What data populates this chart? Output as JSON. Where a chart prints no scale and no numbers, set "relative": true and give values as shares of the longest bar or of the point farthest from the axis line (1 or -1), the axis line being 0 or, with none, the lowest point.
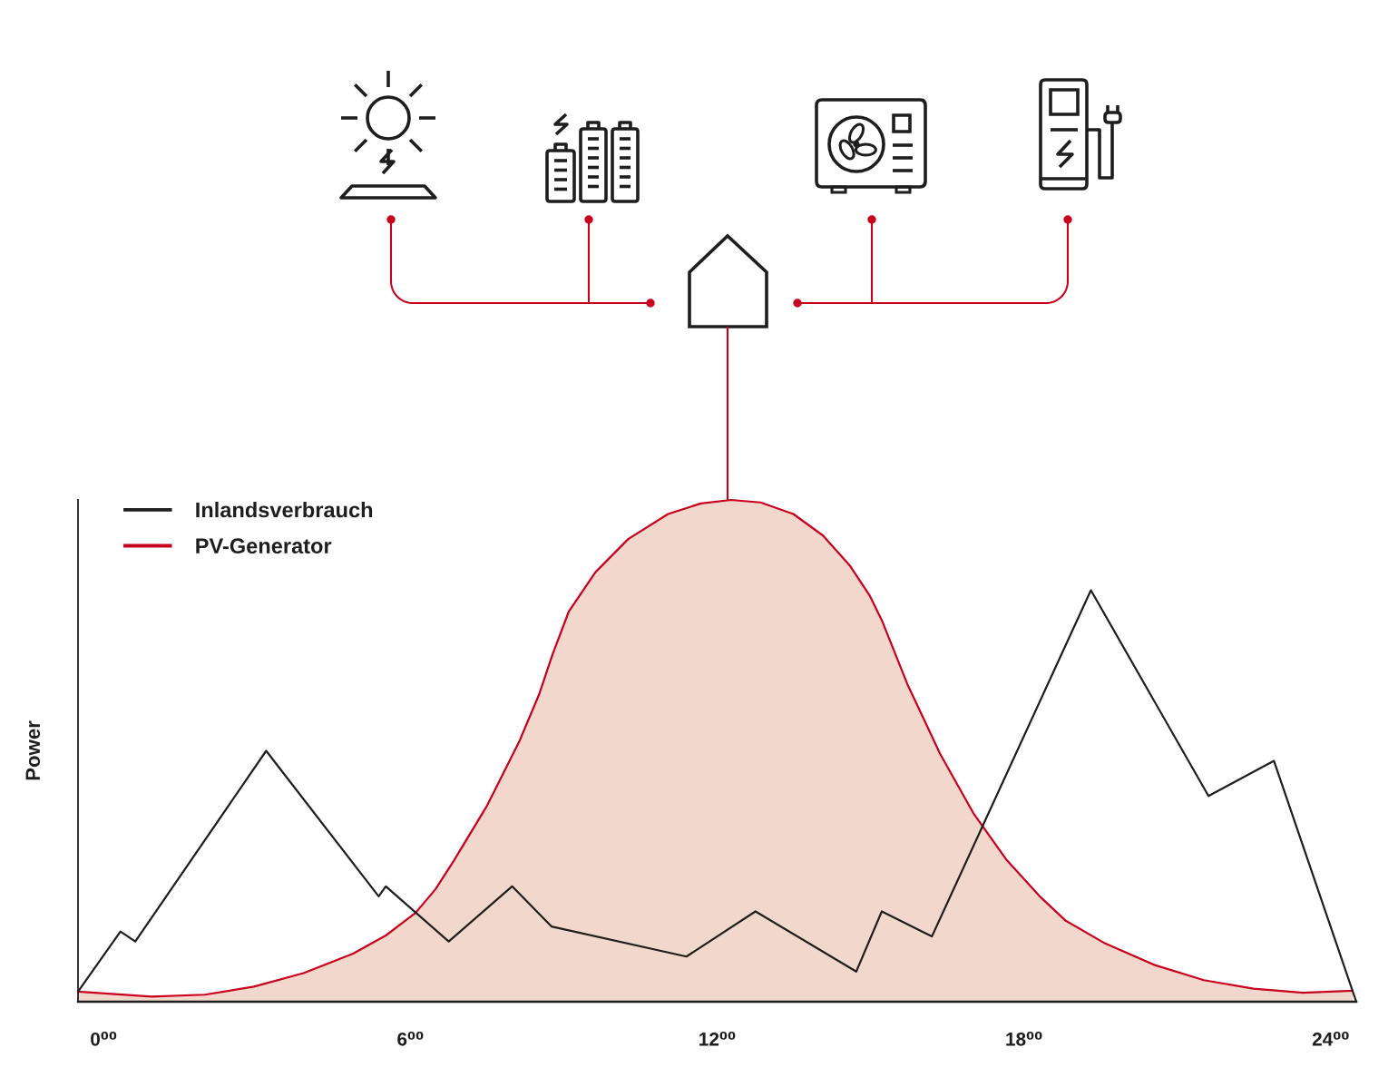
{
  "chart_data": {
    "type": "line",
    "relative": true,
    "ylabel": "Power",
    "legend": "top left",
    "xlim": [
      -0.5,
      24.5
    ],
    "xticks": [
      {
        "value": 0,
        "label": "0⁰⁰"
      },
      {
        "value": 6,
        "label": "6⁰⁰"
      },
      {
        "value": 12,
        "label": "12⁰⁰"
      },
      {
        "value": 18,
        "label": "18⁰⁰"
      },
      {
        "value": 24,
        "label": "24⁰⁰"
      }
    ],
    "series": [
      {
        "name": "Inlandsverbrauch",
        "color": "#1e1e1e",
        "x": [
          -0.5,
          0.33,
          0.62,
          3.18,
          5.38,
          5.52,
          6.75,
          7.99,
          8.76,
          11.4,
          12.75,
          14.72,
          15.22,
          16.2,
          19.31,
          21.61,
          22.89,
          24.5
        ],
        "values": [
          0.02,
          0.14,
          0.12,
          0.5,
          0.21,
          0.23,
          0.12,
          0.23,
          0.15,
          0.09,
          0.18,
          0.06,
          0.18,
          0.13,
          0.82,
          0.41,
          0.48,
          0
        ]
      },
      {
        "name": "PV-Generator",
        "type": "area",
        "color": "#c8001e",
        "x": [
          -0.5,
          0.94,
          1.98,
          2.94,
          3.91,
          4.88,
          5.52,
          6.1,
          6.49,
          6.85,
          7.49,
          8.14,
          8.52,
          8.78,
          9.1,
          9.62,
          10.26,
          11.04,
          11.68,
          12.27,
          12.85,
          13.49,
          14.07,
          14.59,
          14.98,
          15.23,
          15.72,
          16.36,
          17.01,
          17.65,
          18.3,
          18.81,
          19.59,
          20.56,
          21.52,
          22.49,
          23.46,
          24.43
        ],
        "values": [
          0.02,
          0.01,
          0.014,
          0.03,
          0.057,
          0.096,
          0.132,
          0.177,
          0.224,
          0.281,
          0.389,
          0.521,
          0.613,
          0.692,
          0.778,
          0.856,
          0.922,
          0.972,
          0.993,
          1.0,
          0.995,
          0.972,
          0.929,
          0.87,
          0.81,
          0.758,
          0.633,
          0.494,
          0.376,
          0.284,
          0.211,
          0.162,
          0.116,
          0.073,
          0.043,
          0.026,
          0.018,
          0.022
        ]
      }
    ]
  }
}
